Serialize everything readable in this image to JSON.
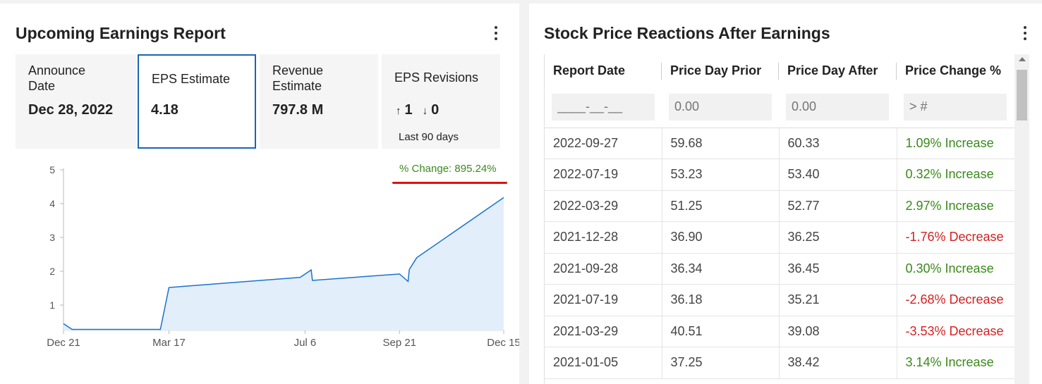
{
  "left_panel": {
    "title": "Upcoming Earnings Report",
    "cards": {
      "announce": {
        "label": "Announce Date",
        "value": "Dec 28, 2022"
      },
      "eps": {
        "label": "EPS Estimate",
        "value": "4.18"
      },
      "revenue": {
        "label": "Revenue Estimate",
        "value": "797.8 M"
      },
      "revisions": {
        "label": "EPS Revisions",
        "up_icon": "arrow-up-icon",
        "up": "1",
        "down_icon": "arrow-down-icon",
        "down": "0",
        "note": "Last 90 days"
      }
    },
    "pct_change": "% Change: 895.24%",
    "highlight_color": "#e01010"
  },
  "chart_data": {
    "type": "area",
    "x_ticks": [
      "Dec 21",
      "Mar 17",
      "Jul 6",
      "Sep 21",
      "Dec 15"
    ],
    "y_ticks": [
      "1",
      "2",
      "3",
      "4",
      "5"
    ],
    "ylim": [
      0.25,
      5
    ],
    "series": [
      {
        "x": [
          "Dec 21",
          "Dec 28",
          "Mar 10",
          "Mar 17",
          "Jul 2",
          "Jul 11",
          "Jul 12",
          "Sep 21",
          "Sep 28",
          "Sep 29",
          "Oct 5",
          "Dec 15"
        ],
        "values": [
          0.45,
          0.28,
          0.28,
          1.52,
          1.82,
          2.04,
          1.73,
          1.92,
          1.7,
          2.05,
          2.4,
          4.18
        ]
      }
    ],
    "line_color": "#1a72d0",
    "fill_color": "#e3eefb"
  },
  "right_panel": {
    "title": "Stock Price Reactions After Earnings",
    "columns": [
      "Report Date",
      "Price Day Prior",
      "Price Day After",
      "Price Change %"
    ],
    "filters": [
      "____-__-__",
      "0.00",
      "0.00",
      "> #"
    ],
    "rows": [
      {
        "date": "2022-09-27",
        "prior": "59.68",
        "after": "60.33",
        "change": "1.09% Increase",
        "dir": "inc"
      },
      {
        "date": "2022-07-19",
        "prior": "53.23",
        "after": "53.40",
        "change": "0.32% Increase",
        "dir": "inc"
      },
      {
        "date": "2022-03-29",
        "prior": "51.25",
        "after": "52.77",
        "change": "2.97% Increase",
        "dir": "inc"
      },
      {
        "date": "2021-12-28",
        "prior": "36.90",
        "after": "36.25",
        "change": "-1.76% Decrease",
        "dir": "dec"
      },
      {
        "date": "2021-09-28",
        "prior": "36.34",
        "after": "36.45",
        "change": "0.30% Increase",
        "dir": "inc"
      },
      {
        "date": "2021-07-19",
        "prior": "36.18",
        "after": "35.21",
        "change": "-2.68% Decrease",
        "dir": "dec"
      },
      {
        "date": "2021-03-29",
        "prior": "40.51",
        "after": "39.08",
        "change": "-3.53% Decrease",
        "dir": "dec"
      },
      {
        "date": "2021-01-05",
        "prior": "37.25",
        "after": "38.42",
        "change": "3.14% Increase",
        "dir": "inc"
      }
    ]
  }
}
